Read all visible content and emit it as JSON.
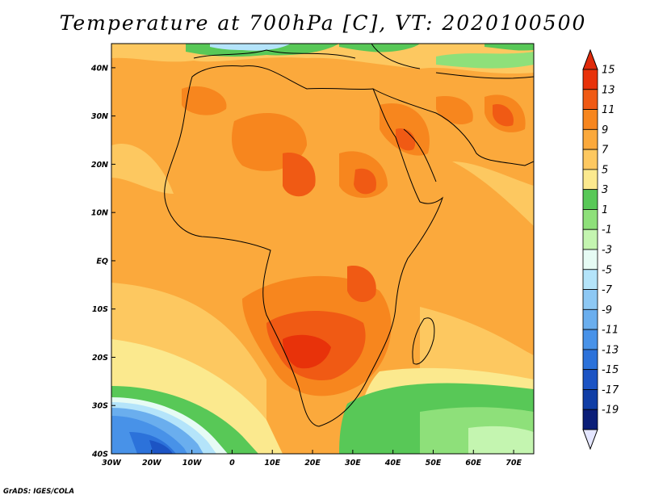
{
  "title": "Temperature at 700hPa [C], VT: 2020100500",
  "credit": "GrADS: IGES/COLA",
  "map": {
    "lon_range": [
      -30,
      75
    ],
    "lat_range": [
      -40,
      45
    ],
    "lon_ticks": [
      {
        "value": -30,
        "label": "30W"
      },
      {
        "value": -20,
        "label": "20W"
      },
      {
        "value": -10,
        "label": "10W"
      },
      {
        "value": 0,
        "label": "0"
      },
      {
        "value": 10,
        "label": "10E"
      },
      {
        "value": 20,
        "label": "20E"
      },
      {
        "value": 30,
        "label": "30E"
      },
      {
        "value": 40,
        "label": "40E"
      },
      {
        "value": 50,
        "label": "50E"
      },
      {
        "value": 60,
        "label": "60E"
      },
      {
        "value": 70,
        "label": "70E"
      }
    ],
    "lat_ticks": [
      {
        "value": 40,
        "label": "40N"
      },
      {
        "value": 30,
        "label": "30N"
      },
      {
        "value": 20,
        "label": "20N"
      },
      {
        "value": 10,
        "label": "10N"
      },
      {
        "value": 0,
        "label": "EQ"
      },
      {
        "value": -10,
        "label": "10S"
      },
      {
        "value": -20,
        "label": "20S"
      },
      {
        "value": -30,
        "label": "30S"
      },
      {
        "value": -40,
        "label": "40S"
      }
    ]
  },
  "colorbar": {
    "labels": [
      "15",
      "13",
      "11",
      "9",
      "7",
      "5",
      "3",
      "1",
      "-1",
      "-3",
      "-5",
      "-7",
      "-9",
      "-11",
      "-13",
      "-15",
      "-17",
      "-19"
    ],
    "colors": [
      "#e8320a",
      "#f05a14",
      "#f7861e",
      "#fba93c",
      "#fdc860",
      "#fbe98e",
      "#58c857",
      "#8ee07a",
      "#c4f5b0",
      "#e6fbf4",
      "#b4e4fa",
      "#8dc8f4",
      "#6aaeee",
      "#4892e8",
      "#2c72da",
      "#1c54c4",
      "#103ea6",
      "#0b1e78"
    ],
    "top_color": "#e02a0a",
    "bottom_color": "#e4e6ff"
  }
}
